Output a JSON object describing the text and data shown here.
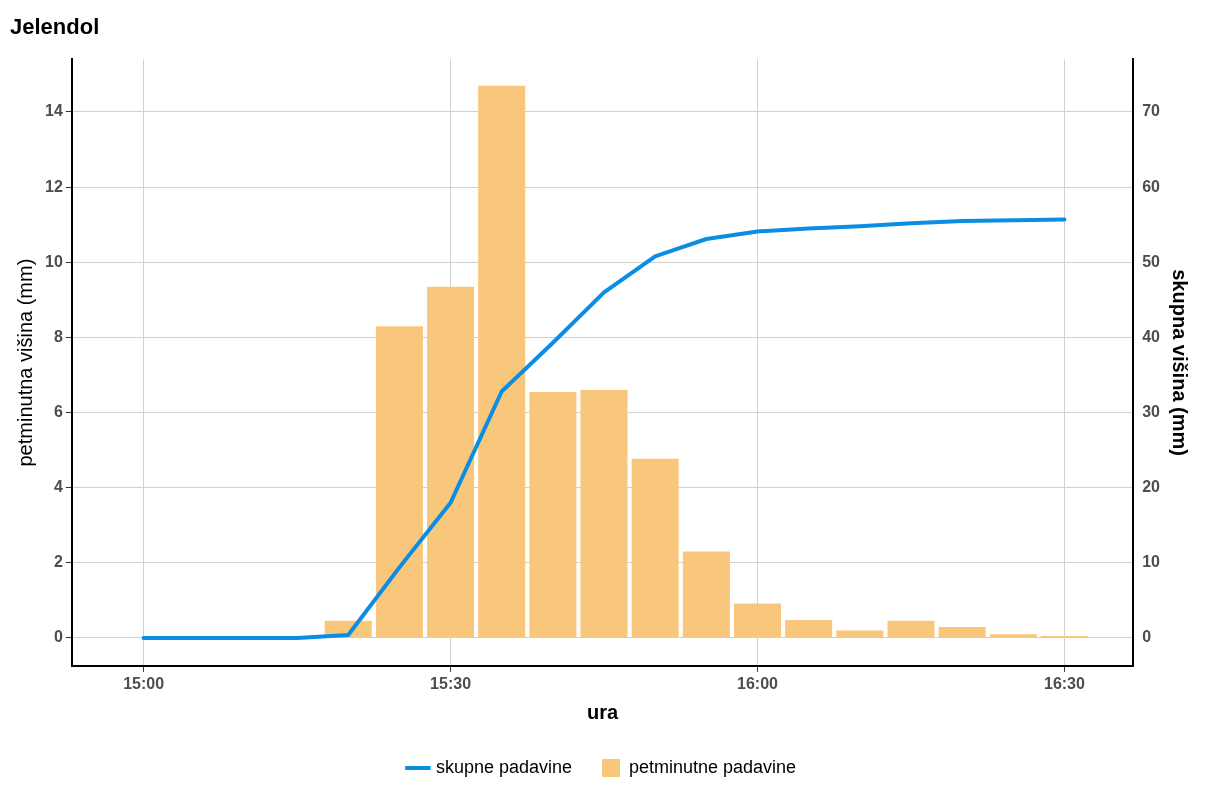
{
  "chart_data": {
    "type": "bar",
    "title": "Jelendol",
    "xlabel": "ura",
    "ylabel": "petminutna višina (mm)",
    "y2label": "skupna višina (mm)",
    "xlim": [
      14.883,
      16.612
    ],
    "xticks": [
      {
        "value": 15,
        "label": "15:00"
      },
      {
        "value": 15.5,
        "label": "15:30"
      },
      {
        "value": 16,
        "label": "16:00"
      },
      {
        "value": 16.5,
        "label": "16:30"
      }
    ],
    "ylim": [
      -0.74,
      15.4
    ],
    "yticks": [
      0,
      2,
      4,
      6,
      8,
      10,
      12,
      14
    ],
    "y2lim": [
      -3.7,
      77
    ],
    "y2ticks": [
      0,
      10,
      20,
      30,
      40,
      50,
      60,
      70
    ],
    "grid": true,
    "legend": "bottom",
    "series": [
      {
        "name": "skupne padavine",
        "type": "line",
        "axis": "y2",
        "color": "#0a8de3",
        "x": [
          15,
          15.0833,
          15.1667,
          15.25,
          15.3333,
          15.4167,
          15.5,
          15.5833,
          15.6667,
          15.75,
          15.8333,
          15.9167,
          16,
          16.0833,
          16.1667,
          16.25,
          16.3333,
          16.4167,
          16.5
        ],
        "values": [
          0,
          0,
          0,
          0,
          0.4,
          9.4,
          18,
          32.8,
          39.3,
          46,
          50.8,
          53.1,
          54.1,
          54.5,
          54.8,
          55.2,
          55.5,
          55.6,
          55.7
        ]
      },
      {
        "name": "petminutne padavine",
        "color": "#f9c77b",
        "x": [
          15.3333,
          15.4167,
          15.5,
          15.5833,
          15.6667,
          15.75,
          15.8333,
          15.9167,
          16,
          16.0833,
          16.1667,
          16.25,
          16.3333,
          16.4167,
          16.5
        ],
        "values": [
          0.46,
          8.3,
          9.35,
          14.7,
          6.55,
          6.6,
          4.77,
          2.3,
          0.92,
          0.48,
          0.2,
          0.46,
          0.29,
          0.1,
          0.05
        ]
      }
    ]
  }
}
